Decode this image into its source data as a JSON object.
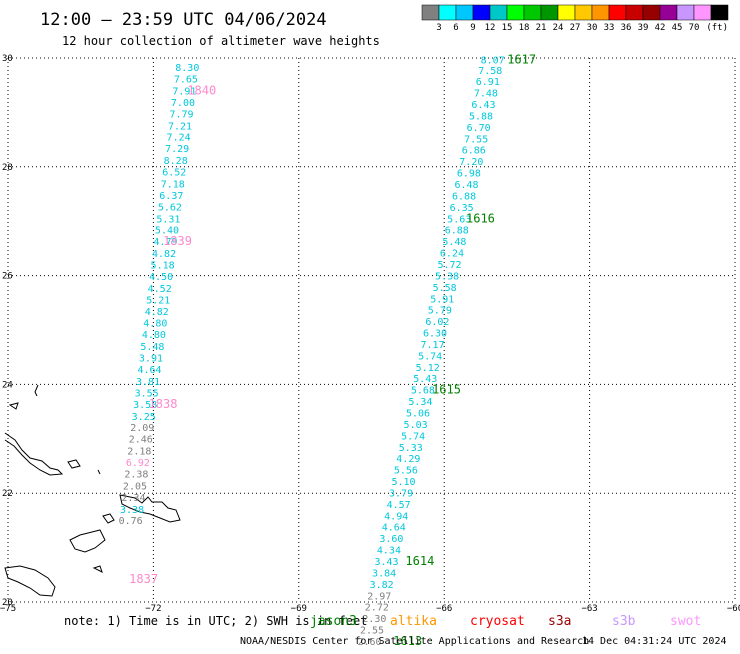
{
  "title": "12:00 – 23:59 UTC 04/06/2024",
  "subtitle": "12 hour collection of altimeter wave heights",
  "colorbar": {
    "colors": [
      "#808080",
      "#00ffff",
      "#00c8ff",
      "#0000ff",
      "#00c8c8",
      "#00ff00",
      "#00c800",
      "#009600",
      "#ffff00",
      "#ffc800",
      "#ff9600",
      "#ff0000",
      "#c80000",
      "#960000",
      "#960096",
      "#c896ff",
      "#ff96ff",
      "#000000"
    ],
    "labels": [
      "3",
      "6",
      "9",
      "12",
      "15",
      "18",
      "21",
      "24",
      "27",
      "30",
      "33",
      "36",
      "39",
      "42",
      "45",
      "70"
    ],
    "unit": "(ft)"
  },
  "chart_data": {
    "type": "scatter",
    "xlim": [
      -75,
      -60
    ],
    "ylim": [
      20,
      30
    ],
    "x_ticks": [
      "−75",
      "−72",
      "−69",
      "−66",
      "−63",
      "−60"
    ],
    "y_ticks": [
      "20",
      "22",
      "24",
      "26",
      "28",
      "30"
    ],
    "grid": true,
    "tracks": [
      {
        "color": "#00c8dc",
        "time_color": "#ff88cc",
        "points": [
          {
            "x": -71.3,
            "y": 29.76,
            "v": "8.30"
          },
          {
            "x": -71.33,
            "y": 29.55,
            "v": "7.65"
          },
          {
            "x": -71.36,
            "y": 29.33,
            "v": "7.91"
          },
          {
            "x": -71.39,
            "y": 29.12,
            "v": "7.00"
          },
          {
            "x": -71.42,
            "y": 28.91,
            "v": "7.79"
          },
          {
            "x": -71.45,
            "y": 28.69,
            "v": "7.21"
          },
          {
            "x": -71.48,
            "y": 28.48,
            "v": "7.24"
          },
          {
            "x": -71.51,
            "y": 28.27,
            "v": "7.29"
          },
          {
            "x": -71.54,
            "y": 28.05,
            "v": "8.28"
          },
          {
            "x": -71.57,
            "y": 27.84,
            "v": "6.52"
          },
          {
            "x": -71.6,
            "y": 27.62,
            "v": "7.18"
          },
          {
            "x": -71.63,
            "y": 27.41,
            "v": "6.37"
          },
          {
            "x": -71.66,
            "y": 27.2,
            "v": "5.62"
          },
          {
            "x": -71.69,
            "y": 26.98,
            "v": "5.31"
          },
          {
            "x": -71.72,
            "y": 26.77,
            "v": "5.40"
          },
          {
            "x": -71.75,
            "y": 26.56,
            "v": "4.79"
          },
          {
            "x": -71.78,
            "y": 26.34,
            "v": "4.82"
          },
          {
            "x": -71.81,
            "y": 26.13,
            "v": "5.18"
          },
          {
            "x": -71.84,
            "y": 25.92,
            "v": "4.50"
          },
          {
            "x": -71.87,
            "y": 25.7,
            "v": "4.52"
          },
          {
            "x": -71.9,
            "y": 25.49,
            "v": "5.21"
          },
          {
            "x": -71.93,
            "y": 25.28,
            "v": "4.82"
          },
          {
            "x": -71.96,
            "y": 25.06,
            "v": "4.80"
          },
          {
            "x": -71.99,
            "y": 24.85,
            "v": "4.80"
          },
          {
            "x": -72.02,
            "y": 24.63,
            "v": "5.48"
          },
          {
            "x": -72.05,
            "y": 24.42,
            "v": "3.91"
          },
          {
            "x": -72.08,
            "y": 24.21,
            "v": "4.64"
          },
          {
            "x": -72.11,
            "y": 23.99,
            "v": "3.81"
          },
          {
            "x": -72.14,
            "y": 23.78,
            "v": "3.55"
          },
          {
            "x": -72.17,
            "y": 23.57,
            "v": "3.58"
          },
          {
            "x": -72.2,
            "y": 23.35,
            "v": "3.25"
          },
          {
            "x": -72.23,
            "y": 23.14,
            "v": "2.09",
            "c": "#808080"
          },
          {
            "x": -72.26,
            "y": 22.93,
            "v": "2.46",
            "c": "#808080"
          },
          {
            "x": -72.29,
            "y": 22.71,
            "v": "2.18",
            "c": "#808080"
          },
          {
            "x": -72.32,
            "y": 22.5,
            "v": "6.92",
            "c": "#ff88cc"
          },
          {
            "x": -72.35,
            "y": 22.29,
            "v": "2.38",
            "c": "#808080"
          },
          {
            "x": -72.38,
            "y": 22.07,
            "v": "2.05",
            "c": "#808080"
          },
          {
            "x": -72.41,
            "y": 21.86,
            "v": "2.34",
            "c": "#808080"
          },
          {
            "x": -72.44,
            "y": 21.64,
            "v": "3.38"
          },
          {
            "x": -72.47,
            "y": 21.43,
            "v": "0.76",
            "c": "#808080"
          }
        ],
        "time_labels": [
          {
            "x": -71.3,
            "y": 29.33,
            "t": "1840"
          },
          {
            "x": -71.8,
            "y": 26.56,
            "t": "1839"
          },
          {
            "x": -72.1,
            "y": 23.57,
            "t": "1838"
          },
          {
            "x": -72.5,
            "y": 20.35,
            "t": "1837"
          }
        ]
      },
      {
        "color": "#00c8dc",
        "time_color": "#008000",
        "points": [
          {
            "x": -65.0,
            "y": 29.9,
            "v": "8.07"
          },
          {
            "x": -65.05,
            "y": 29.71,
            "v": "7.58"
          },
          {
            "x": -65.1,
            "y": 29.5,
            "v": "6.91"
          },
          {
            "x": -65.14,
            "y": 29.29,
            "v": "7.48"
          },
          {
            "x": -65.19,
            "y": 29.08,
            "v": "6.43"
          },
          {
            "x": -65.24,
            "y": 28.87,
            "v": "5.88"
          },
          {
            "x": -65.29,
            "y": 28.66,
            "v": "6.70"
          },
          {
            "x": -65.34,
            "y": 28.45,
            "v": "7.55"
          },
          {
            "x": -65.39,
            "y": 28.24,
            "v": "6.86"
          },
          {
            "x": -65.44,
            "y": 28.03,
            "v": "7.20"
          },
          {
            "x": -65.49,
            "y": 27.82,
            "v": "6.98"
          },
          {
            "x": -65.54,
            "y": 27.61,
            "v": "6.48"
          },
          {
            "x": -65.59,
            "y": 27.4,
            "v": "6.88"
          },
          {
            "x": -65.64,
            "y": 27.19,
            "v": "6.35"
          },
          {
            "x": -65.69,
            "y": 26.98,
            "v": "5.63"
          },
          {
            "x": -65.74,
            "y": 26.77,
            "v": "6.88"
          },
          {
            "x": -65.79,
            "y": 26.56,
            "v": "5.48"
          },
          {
            "x": -65.84,
            "y": 26.35,
            "v": "6.24"
          },
          {
            "x": -65.89,
            "y": 26.14,
            "v": "5.72"
          },
          {
            "x": -65.94,
            "y": 25.93,
            "v": "5.38"
          },
          {
            "x": -65.99,
            "y": 25.72,
            "v": "5.58"
          },
          {
            "x": -66.04,
            "y": 25.51,
            "v": "5.91"
          },
          {
            "x": -66.09,
            "y": 25.3,
            "v": "5.79"
          },
          {
            "x": -66.14,
            "y": 25.09,
            "v": "6.02"
          },
          {
            "x": -66.19,
            "y": 24.88,
            "v": "6.30"
          },
          {
            "x": -66.24,
            "y": 24.67,
            "v": "7.17"
          },
          {
            "x": -66.29,
            "y": 24.46,
            "v": "5.74"
          },
          {
            "x": -66.34,
            "y": 24.25,
            "v": "5.12"
          },
          {
            "x": -66.39,
            "y": 24.04,
            "v": "5.43"
          },
          {
            "x": -66.44,
            "y": 23.83,
            "v": "5.68"
          },
          {
            "x": -66.49,
            "y": 23.62,
            "v": "5.34"
          },
          {
            "x": -66.54,
            "y": 23.41,
            "v": "5.06"
          },
          {
            "x": -66.59,
            "y": 23.2,
            "v": "5.03"
          },
          {
            "x": -66.64,
            "y": 22.99,
            "v": "5.74"
          },
          {
            "x": -66.69,
            "y": 22.78,
            "v": "5.33"
          },
          {
            "x": -66.74,
            "y": 22.57,
            "v": "4.29"
          },
          {
            "x": -66.79,
            "y": 22.36,
            "v": "5.56"
          },
          {
            "x": -66.84,
            "y": 22.15,
            "v": "5.10"
          },
          {
            "x": -66.89,
            "y": 21.94,
            "v": "3.79"
          },
          {
            "x": -66.94,
            "y": 21.73,
            "v": "4.57"
          },
          {
            "x": -66.99,
            "y": 21.52,
            "v": "4.94"
          },
          {
            "x": -67.04,
            "y": 21.31,
            "v": "4.64"
          },
          {
            "x": -67.09,
            "y": 21.1,
            "v": "3.60"
          },
          {
            "x": -67.14,
            "y": 20.89,
            "v": "4.34"
          },
          {
            "x": -67.19,
            "y": 20.68,
            "v": "3.43"
          },
          {
            "x": -67.24,
            "y": 20.47,
            "v": "3.84"
          },
          {
            "x": -67.29,
            "y": 20.26,
            "v": "3.82"
          },
          {
            "x": -67.34,
            "y": 20.05,
            "v": "2.97",
            "c": "#808080"
          },
          {
            "x": -67.39,
            "y": 19.84,
            "v": "2.72",
            "c": "#808080"
          },
          {
            "x": -67.44,
            "y": 19.63,
            "v": "2.30",
            "c": "#808080"
          },
          {
            "x": -67.49,
            "y": 19.42,
            "v": "2.55",
            "c": "#808080"
          },
          {
            "x": -67.54,
            "y": 19.21,
            "v": "2.60",
            "c": "#808080"
          }
        ],
        "time_labels": [
          {
            "x": -64.7,
            "y": 29.9,
            "t": "1617"
          },
          {
            "x": -65.55,
            "y": 26.98,
            "t": "1616"
          },
          {
            "x": -66.25,
            "y": 23.83,
            "t": "1615"
          },
          {
            "x": -66.8,
            "y": 20.68,
            "t": "1614"
          },
          {
            "x": -67.05,
            "y": 19.21,
            "t": "1613"
          }
        ]
      }
    ]
  },
  "footer": {
    "note": "note:  1) Time is in UTC; 2) SWH is in feet",
    "satellites": [
      {
        "name": "jason3",
        "color": "#008000"
      },
      {
        "name": "altika",
        "color": "#ff9600"
      },
      {
        "name": "cryosat",
        "color": "#ff0000"
      },
      {
        "name": "s3a",
        "color": "#960000"
      },
      {
        "name": "s3b",
        "color": "#c896ff"
      },
      {
        "name": "swot",
        "color": "#ff96ff"
      }
    ],
    "credit": "NOAA/NESDIS Center for Satellite Applications and Research",
    "timestamp": "14 Dec 04:31:24 UTC 2024"
  }
}
